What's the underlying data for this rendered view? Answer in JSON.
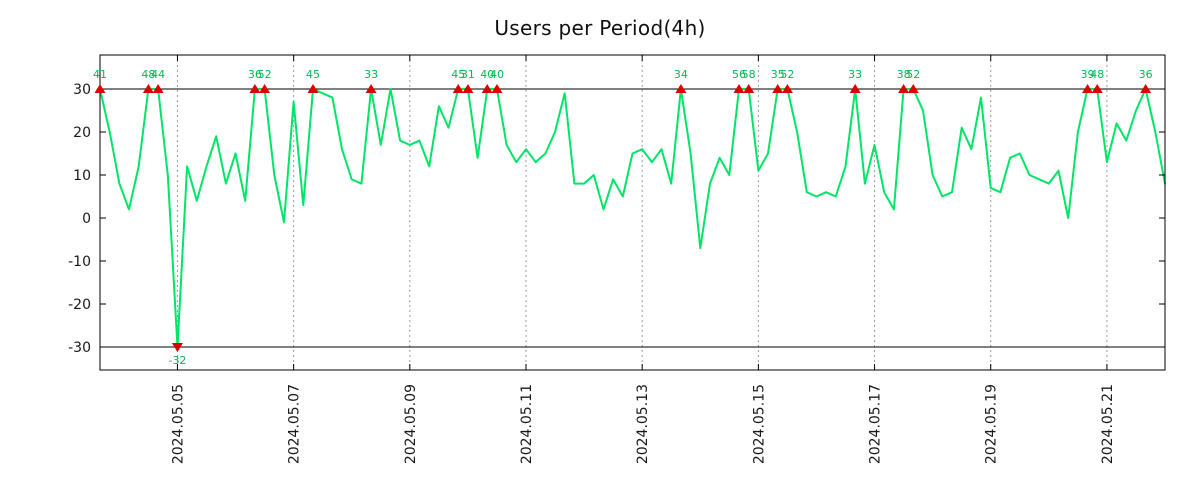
{
  "title": "Users per Period(4h)",
  "colors": {
    "series": "#00e567",
    "marker": "#dd0000",
    "label": "#00bb55",
    "grid": "#9a9a9a",
    "axis": "#000000",
    "tick_text": "#1a1a1a",
    "background": "#ffffff"
  },
  "chart_data": {
    "type": "line",
    "title": "Users per Period(4h)",
    "series_name": "users",
    "period_hours": 4,
    "xlabel": "",
    "ylabel": "",
    "legend": "none",
    "grid_style": "vertical-dotted",
    "clip_limit": 30,
    "ylim": [
      -35,
      38
    ],
    "yticks": [
      30,
      20,
      10,
      0,
      -10,
      -20,
      -30
    ],
    "xticks": [
      {
        "index": 8,
        "label": "2024.05.05"
      },
      {
        "index": 20,
        "label": "2024.05.07"
      },
      {
        "index": 32,
        "label": "2024.05.09"
      },
      {
        "index": 44,
        "label": "2024.05.11"
      },
      {
        "index": 56,
        "label": "2024.05.13"
      },
      {
        "index": 68,
        "label": "2024.05.15"
      },
      {
        "index": 80,
        "label": "2024.05.17"
      },
      {
        "index": 92,
        "label": "2024.05.19"
      },
      {
        "index": 104,
        "label": "2024.05.21"
      }
    ],
    "values": [
      41,
      20,
      8,
      2,
      12,
      48,
      44,
      10,
      -32,
      12,
      4,
      12,
      19,
      8,
      15,
      4,
      36,
      52,
      10,
      -1,
      27,
      3,
      45,
      29,
      28,
      16,
      9,
      8,
      33,
      17,
      30,
      18,
      17,
      18,
      12,
      26,
      21,
      45,
      31,
      14,
      40,
      40,
      17,
      13,
      16,
      13,
      15,
      20,
      29,
      8,
      8,
      10,
      2,
      9,
      5,
      15,
      16,
      13,
      16,
      8,
      34,
      15,
      -7,
      8,
      14,
      10,
      56,
      58,
      11,
      15,
      35,
      52,
      20,
      6,
      5,
      6,
      5,
      12,
      33,
      8,
      17,
      6,
      2,
      38,
      52,
      25,
      10,
      5,
      6,
      21,
      16,
      28,
      7,
      6,
      14,
      15,
      10,
      9,
      8,
      11,
      0,
      20,
      39,
      48,
      13,
      22,
      18,
      25,
      36,
      20,
      8
    ],
    "clipped_peak_labels": [
      41,
      48,
      44,
      -32,
      36,
      52,
      45,
      33,
      45,
      31,
      40,
      40,
      34,
      56,
      58,
      35,
      52,
      33,
      38,
      52,
      39,
      48,
      36
    ]
  }
}
